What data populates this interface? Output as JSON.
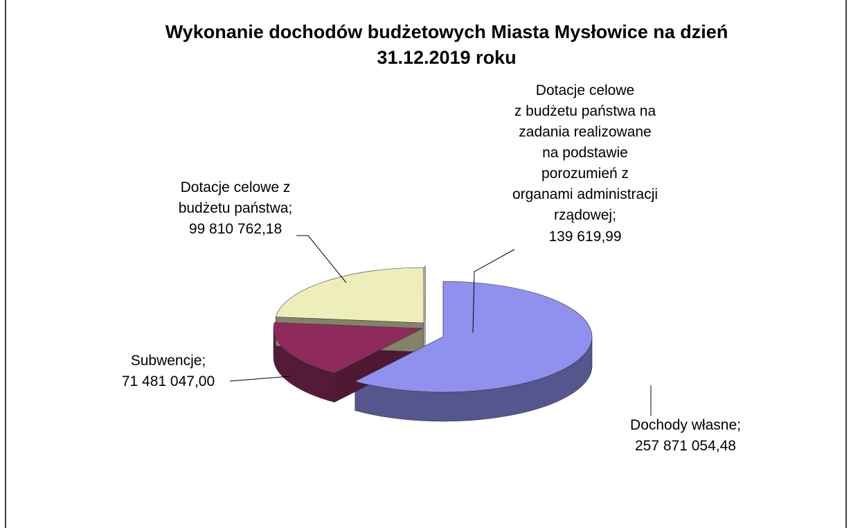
{
  "chart_data": {
    "type": "pie3d",
    "title": "Wykonanie dochodów budżetowych Miasta Mysłowice na dzień\n31.12.2019 roku",
    "categories": [
      "Dochody własne;",
      "Subwencje;",
      "Dotacje celowe z\nbudżetu państwa;",
      "Dotacje celowe\nz budżetu państwa na\nzadania realizowane\nna podstawie\nporozumień  z\norganami administracji\nrządowej;"
    ],
    "values": [
      257871054.48,
      71481047.0,
      99810762.18,
      139619.99
    ],
    "value_labels": [
      "257 871 054,48",
      "71 481 047,00",
      "99 810 762,18",
      "139 619,99"
    ],
    "colors": [
      "#9090ee",
      "#8e2b5c",
      "#eeeebb",
      "#7a8a6a"
    ]
  }
}
